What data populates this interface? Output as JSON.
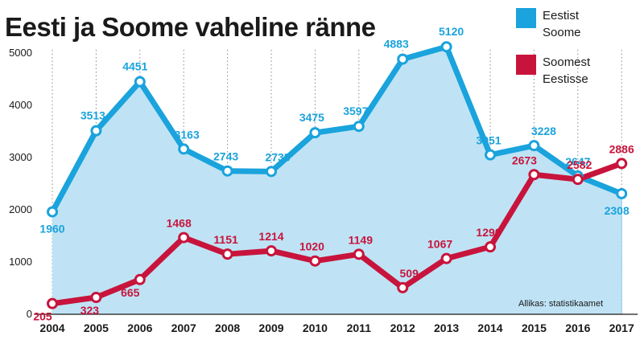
{
  "chart_data": {
    "type": "line",
    "title": "Eesti ja Soome vaheline ränne",
    "x": [
      "2004",
      "2005",
      "2006",
      "2007",
      "2008",
      "2009",
      "2010",
      "2011",
      "2012",
      "2013",
      "2014",
      "2015",
      "2016",
      "2017"
    ],
    "ylim": [
      0,
      5300
    ],
    "yticks": [
      0,
      1000,
      2000,
      3000,
      4000,
      5000
    ],
    "grid": "vertical dotted",
    "legend_position": "top-right",
    "series": [
      {
        "name_lines": [
          "Eestist",
          "Soome"
        ],
        "color": "#1aa3dc",
        "area_fill": "#bfe3f5",
        "values": [
          1960,
          3513,
          4451,
          3163,
          2743,
          2733,
          3475,
          3597,
          4883,
          5120,
          3051,
          3228,
          2647,
          2308
        ]
      },
      {
        "name_lines": [
          "Soomest",
          "Eestisse"
        ],
        "color": "#c8143c",
        "values": [
          205,
          323,
          665,
          1468,
          1151,
          1214,
          1020,
          1149,
          509,
          1067,
          1290,
          2673,
          2582,
          2886
        ]
      }
    ],
    "source": "Allikas: statistikaamet"
  }
}
